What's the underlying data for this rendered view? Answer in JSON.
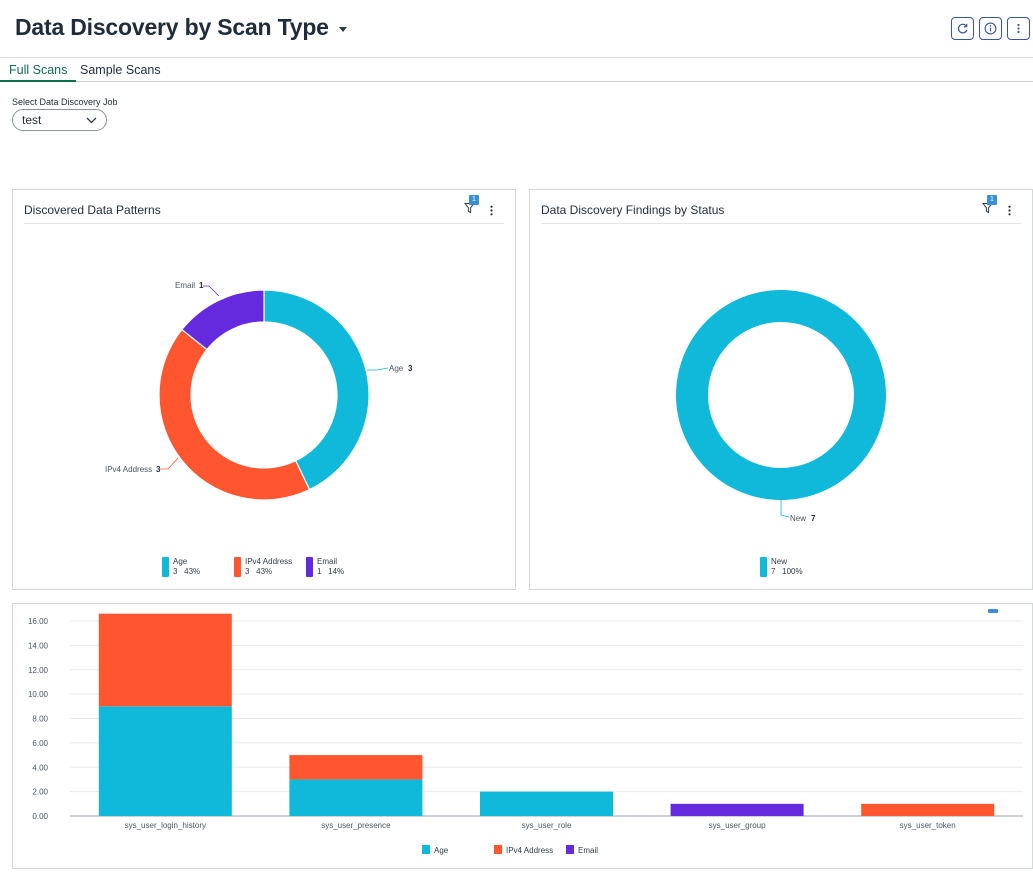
{
  "header": {
    "title": "Data Discovery by Scan Type",
    "buttons": [
      {
        "name": "refresh",
        "icon": "refresh-icon"
      },
      {
        "name": "info",
        "icon": "info-icon"
      },
      {
        "name": "more",
        "icon": "more-vertical-icon"
      }
    ]
  },
  "tabs": [
    {
      "label": "Full Scans",
      "active": true
    },
    {
      "label": "Sample Scans",
      "active": false
    }
  ],
  "job_select": {
    "label": "Select Data Discovery Job",
    "value": "test"
  },
  "colors": {
    "age": "#10b8d9",
    "ipv4": "#ff5630",
    "email": "#6529de",
    "accent": "#0f6e4f",
    "filter_badge": "#3b8fd6"
  },
  "patterns_card": {
    "title": "Discovered Data Patterns",
    "filter_count": "1",
    "callouts": [
      {
        "label": "Age",
        "value": "3"
      },
      {
        "label": "IPv4 Address",
        "value": "3"
      },
      {
        "label": "Email",
        "value": "1"
      }
    ],
    "legend": [
      {
        "label": "Age",
        "detail": "3   43%",
        "color": "#10b8d9"
      },
      {
        "label": "IPv4 Address",
        "detail": "3   43%",
        "color": "#ff5630"
      },
      {
        "label": "Email",
        "detail": "1   14%",
        "color": "#6529de"
      }
    ]
  },
  "status_card": {
    "title": "Data Discovery Findings by Status",
    "filter_count": "1",
    "callouts": [
      {
        "label": "New",
        "value": "7"
      }
    ],
    "legend": [
      {
        "label": "New",
        "detail": "7   100%",
        "color": "#10b8d9"
      }
    ]
  },
  "chart_data": [
    {
      "type": "pie",
      "title": "Discovered Data Patterns",
      "categories": [
        "Age",
        "IPv4 Address",
        "Email"
      ],
      "values": [
        3,
        3,
        1
      ],
      "percent": [
        43,
        43,
        14
      ],
      "colors": [
        "#10b8d9",
        "#ff5630",
        "#6529de"
      ],
      "donut": true,
      "legend": "bottom"
    },
    {
      "type": "pie",
      "title": "Data Discovery Findings by Status",
      "categories": [
        "New"
      ],
      "values": [
        7
      ],
      "percent": [
        100
      ],
      "colors": [
        "#10b8d9"
      ],
      "donut": true,
      "legend": "bottom"
    },
    {
      "type": "bar",
      "stacked": true,
      "categories": [
        "sys_user_login_history",
        "sys_user_presence",
        "sys_user_role",
        "sys_user_group",
        "sys_user_token"
      ],
      "series": [
        {
          "name": "Age",
          "color": "#10b8d9",
          "values": [
            9,
            3,
            2,
            0,
            0
          ]
        },
        {
          "name": "IPv4 Address",
          "color": "#ff5630",
          "values": [
            7.6,
            2,
            0,
            0,
            1
          ]
        },
        {
          "name": "Email",
          "color": "#6529de",
          "values": [
            0,
            0,
            0,
            1,
            0
          ]
        }
      ],
      "ylim": [
        0,
        16
      ],
      "yticks": [
        "0.00",
        "2.00",
        "4.00",
        "6.00",
        "8.00",
        "10.00",
        "12.00",
        "14.00",
        "16.00"
      ],
      "grid": true,
      "legend": "bottom"
    }
  ]
}
